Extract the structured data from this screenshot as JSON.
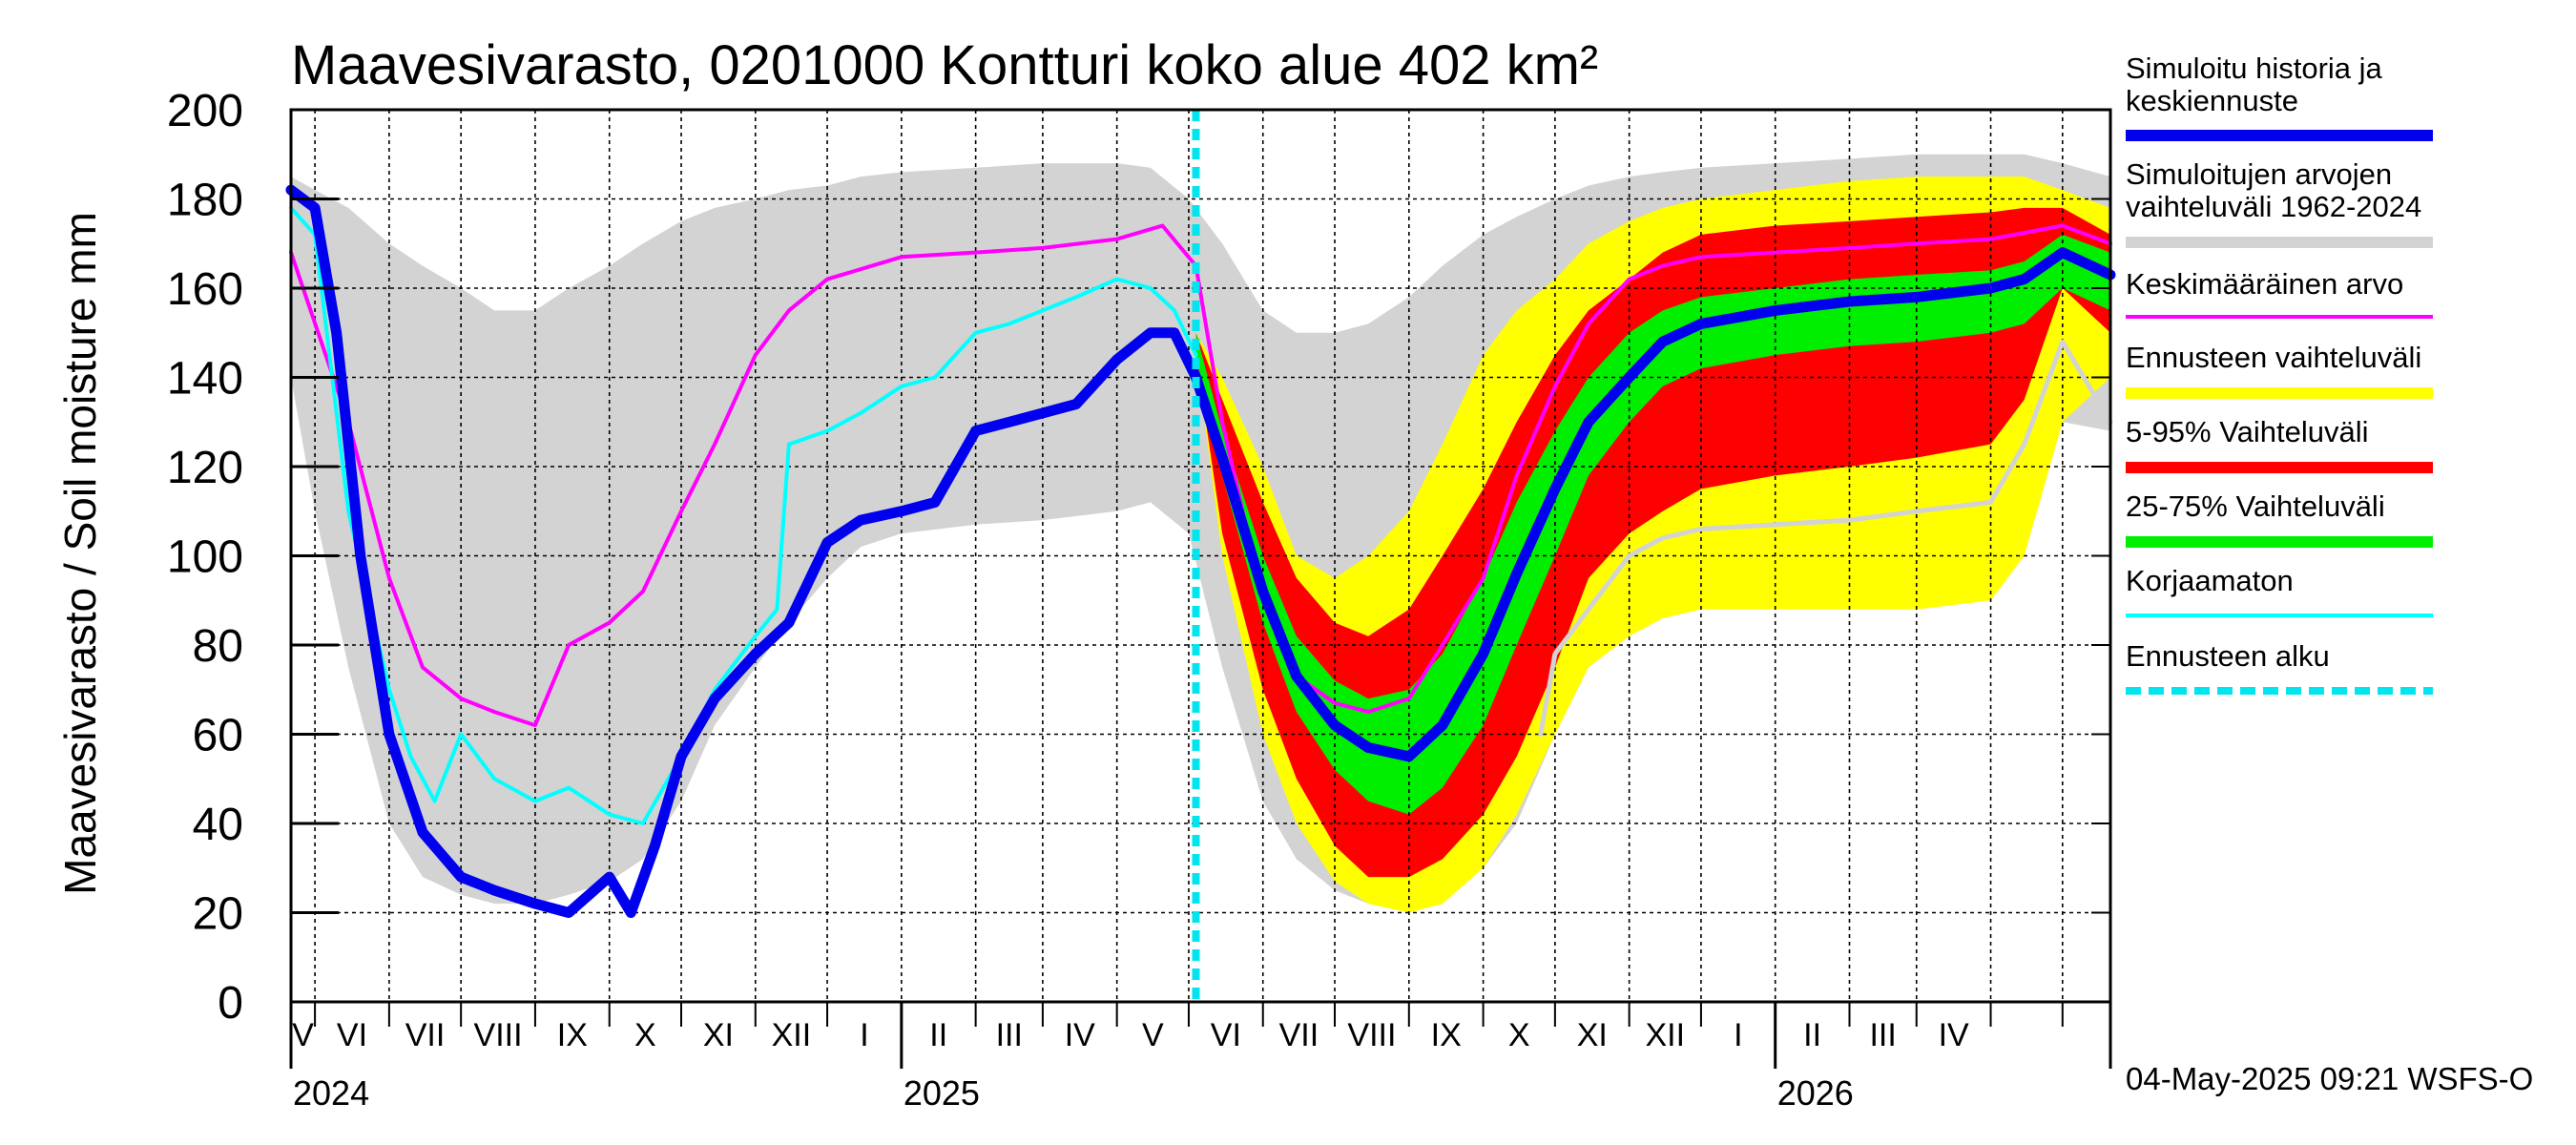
{
  "chart_data": {
    "type": "area",
    "title": "Maavesivarasto, 0201000 Kontturi koko alue 402 km²",
    "ylabel": "Maavesivarasto / Soil moisture   mm",
    "ylim": [
      0,
      200
    ],
    "yticks": [
      "0",
      "20",
      "40",
      "60",
      "80",
      "100",
      "120",
      "140",
      "160",
      "180",
      "200"
    ],
    "x_start": "2024-04-21",
    "x_end": "2026-05-21",
    "forecast_start": "2025-05-04",
    "grid": true,
    "legend_position": "right",
    "month_labels": [
      "V",
      "VI",
      "VII",
      "VIII",
      "IX",
      "X",
      "XI",
      "XII",
      "I",
      "II",
      "III",
      "IV",
      "V",
      "VI",
      "VII",
      "VIII",
      "IX",
      "X",
      "XI",
      "XII",
      "I",
      "II",
      "III",
      "IV"
    ],
    "year_labels": [
      "2024",
      "2025",
      "2026"
    ],
    "legend": [
      {
        "label": "Simuloitu historia ja keskiennuste",
        "color": "#0000ee"
      },
      {
        "label": "Simuloitujen arvojen vaihteluväli 1962-2024",
        "color": "#d3d3d3"
      },
      {
        "label": "Keskimääräinen arvo",
        "color": "#ff00ff"
      },
      {
        "label": "Ennusteen vaihteluväli",
        "color": "#ffff00"
      },
      {
        "label": "5-95% Vaihteluväli",
        "color": "#ff0000"
      },
      {
        "label": "25-75% Vaihteluväli",
        "color": "#00ee00"
      },
      {
        "label": "Korjaamaton",
        "color": "#00ffff"
      },
      {
        "label": "Ennusteen alku",
        "color": "#00e5ee"
      }
    ],
    "series": {
      "historical_range": {
        "x": [
          "2024-04-21",
          "2024-05-01",
          "2024-05-15",
          "2024-06-01",
          "2024-06-15",
          "2024-07-01",
          "2024-07-15",
          "2024-08-01",
          "2024-08-15",
          "2024-09-01",
          "2024-09-15",
          "2024-10-01",
          "2024-10-15",
          "2024-11-01",
          "2024-11-15",
          "2024-12-01",
          "2024-12-15",
          "2025-01-01",
          "2025-02-01",
          "2025-03-01",
          "2025-04-01",
          "2025-04-15",
          "2025-05-01",
          "2025-05-15",
          "2025-06-01",
          "2025-06-15",
          "2025-07-01",
          "2025-07-15",
          "2025-08-01",
          "2025-08-15",
          "2025-09-01",
          "2025-09-15",
          "2025-10-01",
          "2025-10-15",
          "2025-11-01",
          "2025-11-15",
          "2025-12-01",
          "2026-01-01",
          "2026-02-01",
          "2026-03-01",
          "2026-04-01",
          "2026-04-15",
          "2026-05-01",
          "2026-05-21"
        ],
        "low": [
          140,
          110,
          75,
          40,
          28,
          24,
          22,
          22,
          24,
          27,
          32,
          45,
          62,
          75,
          85,
          95,
          102,
          105,
          107,
          108,
          110,
          112,
          105,
          75,
          45,
          32,
          25,
          22,
          22,
          24,
          30,
          40,
          60,
          75,
          90,
          100,
          108,
          112,
          115,
          118,
          122,
          125,
          130,
          128
        ],
        "high": [
          185,
          182,
          178,
          170,
          165,
          160,
          155,
          155,
          160,
          165,
          170,
          175,
          178,
          180,
          182,
          183,
          185,
          186,
          187,
          188,
          188,
          187,
          180,
          170,
          155,
          150,
          150,
          152,
          158,
          165,
          172,
          176,
          180,
          183,
          185,
          186,
          187,
          188,
          189,
          190,
          190,
          190,
          188,
          185
        ]
      },
      "forecast_yellow": {
        "x": [
          "2025-05-04",
          "2025-05-15",
          "2025-06-01",
          "2025-06-15",
          "2025-07-01",
          "2025-07-15",
          "2025-08-01",
          "2025-08-15",
          "2025-09-01",
          "2025-09-15",
          "2025-10-01",
          "2025-10-15",
          "2025-11-01",
          "2025-11-15",
          "2025-12-01",
          "2026-01-01",
          "2026-02-01",
          "2026-03-01",
          "2026-04-01",
          "2026-04-15",
          "2026-05-01",
          "2026-05-21"
        ],
        "low": [
          145,
          100,
          60,
          40,
          27,
          22,
          20,
          22,
          30,
          42,
          60,
          75,
          82,
          86,
          88,
          88,
          88,
          88,
          90,
          100,
          130,
          140
        ],
        "high": [
          150,
          140,
          120,
          100,
          95,
          100,
          110,
          125,
          145,
          155,
          162,
          170,
          175,
          178,
          180,
          182,
          184,
          185,
          185,
          185,
          182,
          178
        ]
      },
      "forecast_5_95": {
        "x": [
          "2025-05-04",
          "2025-05-15",
          "2025-06-01",
          "2025-06-15",
          "2025-07-01",
          "2025-07-15",
          "2025-08-01",
          "2025-08-15",
          "2025-09-01",
          "2025-09-15",
          "2025-10-01",
          "2025-10-15",
          "2025-11-01",
          "2025-11-15",
          "2025-12-01",
          "2026-01-01",
          "2026-02-01",
          "2026-03-01",
          "2026-04-01",
          "2026-04-15",
          "2026-05-01",
          "2026-05-21"
        ],
        "low": [
          145,
          105,
          70,
          50,
          35,
          28,
          28,
          32,
          42,
          55,
          75,
          95,
          105,
          110,
          115,
          118,
          120,
          122,
          125,
          135,
          160,
          150
        ],
        "high": [
          150,
          135,
          112,
          95,
          85,
          82,
          88,
          100,
          115,
          130,
          145,
          155,
          162,
          168,
          172,
          174,
          175,
          176,
          177,
          178,
          178,
          172
        ]
      },
      "forecast_25_75": {
        "x": [
          "2025-05-04",
          "2025-05-15",
          "2025-06-01",
          "2025-06-15",
          "2025-07-01",
          "2025-07-15",
          "2025-08-01",
          "2025-08-15",
          "2025-09-01",
          "2025-09-15",
          "2025-10-01",
          "2025-10-15",
          "2025-11-01",
          "2025-11-15",
          "2025-12-01",
          "2026-01-01",
          "2026-02-01",
          "2026-03-01",
          "2026-04-01",
          "2026-04-15",
          "2026-05-01",
          "2026-05-21"
        ],
        "low": [
          145,
          118,
          85,
          65,
          52,
          45,
          42,
          48,
          62,
          80,
          100,
          118,
          130,
          138,
          142,
          145,
          147,
          148,
          150,
          152,
          160,
          155
        ],
        "high": [
          150,
          128,
          100,
          82,
          72,
          68,
          70,
          78,
          95,
          112,
          128,
          140,
          150,
          155,
          158,
          160,
          162,
          163,
          164,
          166,
          172,
          168
        ]
      },
      "simulated_history": {
        "x": [
          "2024-04-21",
          "2024-05-01",
          "2024-05-10",
          "2024-05-20",
          "2024-06-01",
          "2024-06-15",
          "2024-07-01",
          "2024-07-15",
          "2024-08-01",
          "2024-08-15",
          "2024-09-01",
          "2024-09-10",
          "2024-09-20",
          "2024-10-01",
          "2024-10-15",
          "2024-11-01",
          "2024-11-15",
          "2024-12-01",
          "2024-12-15",
          "2025-01-01",
          "2025-01-15",
          "2025-02-01",
          "2025-02-15",
          "2025-03-01",
          "2025-03-15",
          "2025-04-01",
          "2025-04-15",
          "2025-04-25",
          "2025-05-04"
        ],
        "y": [
          182,
          178,
          150,
          100,
          60,
          38,
          28,
          25,
          22,
          20,
          28,
          20,
          35,
          55,
          68,
          78,
          85,
          103,
          108,
          110,
          112,
          128,
          130,
          132,
          134,
          144,
          150,
          150,
          140
        ]
      },
      "mean_forecast": {
        "x": [
          "2025-05-04",
          "2025-05-15",
          "2025-06-01",
          "2025-06-15",
          "2025-07-01",
          "2025-07-15",
          "2025-08-01",
          "2025-08-15",
          "2025-09-01",
          "2025-09-15",
          "2025-10-01",
          "2025-10-15",
          "2025-11-01",
          "2025-11-15",
          "2025-12-01",
          "2026-01-01",
          "2026-02-01",
          "2026-03-01",
          "2026-04-01",
          "2026-04-15",
          "2026-05-01",
          "2026-05-21"
        ],
        "y": [
          140,
          122,
          92,
          73,
          62,
          57,
          55,
          62,
          78,
          96,
          115,
          130,
          140,
          148,
          152,
          155,
          157,
          158,
          160,
          162,
          168,
          163
        ]
      },
      "mean_value": {
        "x": [
          "2024-04-21",
          "2024-05-15",
          "2024-06-01",
          "2024-06-15",
          "2024-07-01",
          "2024-07-15",
          "2024-08-01",
          "2024-08-15",
          "2024-09-01",
          "2024-09-15",
          "2024-10-01",
          "2024-10-15",
          "2024-11-01",
          "2024-11-15",
          "2024-12-01",
          "2025-01-01",
          "2025-02-01",
          "2025-03-01",
          "2025-04-01",
          "2025-04-20",
          "2025-05-04",
          "2025-05-15",
          "2025-06-01",
          "2025-06-15",
          "2025-07-01",
          "2025-07-15",
          "2025-08-01",
          "2025-08-15",
          "2025-09-01",
          "2025-09-15",
          "2025-10-01",
          "2025-10-15",
          "2025-11-01",
          "2025-11-15",
          "2025-12-01",
          "2026-01-01",
          "2026-02-01",
          "2026-03-01",
          "2026-04-01",
          "2026-05-01",
          "2026-05-21"
        ],
        "y": [
          168,
          130,
          95,
          75,
          68,
          65,
          62,
          80,
          85,
          92,
          110,
          125,
          145,
          155,
          162,
          167,
          168,
          169,
          171,
          174,
          165,
          130,
          90,
          73,
          67,
          65,
          68,
          80,
          95,
          118,
          138,
          152,
          162,
          165,
          167,
          168,
          169,
          170,
          171,
          174,
          170
        ]
      },
      "uncorrected": {
        "x": [
          "2024-04-21",
          "2024-05-01",
          "2024-05-15",
          "2024-06-01",
          "2024-06-10",
          "2024-06-20",
          "2024-07-01",
          "2024-07-15",
          "2024-08-01",
          "2024-08-15",
          "2024-09-01",
          "2024-09-15",
          "2024-10-01",
          "2024-10-15",
          "2024-11-01",
          "2024-11-10",
          "2024-11-15",
          "2024-12-01",
          "2024-12-15",
          "2025-01-01",
          "2025-01-15",
          "2025-02-01",
          "2025-02-15",
          "2025-03-01",
          "2025-03-15",
          "2025-04-01",
          "2025-04-15",
          "2025-04-25",
          "2025-05-04"
        ],
        "y": [
          178,
          172,
          110,
          70,
          55,
          45,
          60,
          50,
          45,
          48,
          42,
          40,
          55,
          70,
          82,
          88,
          125,
          128,
          132,
          138,
          140,
          150,
          152,
          155,
          158,
          162,
          160,
          155,
          145
        ]
      },
      "uncorrected_forecast": {
        "x": [
          "2025-09-25",
          "2025-10-01",
          "2025-10-15",
          "2025-11-01",
          "2025-11-15",
          "2025-12-01",
          "2026-01-01",
          "2026-02-01",
          "2026-03-01",
          "2026-04-01",
          "2026-04-15",
          "2026-05-01",
          "2026-05-21"
        ],
        "y": [
          60,
          78,
          88,
          100,
          104,
          106,
          107,
          108,
          110,
          112,
          125,
          148,
          130
        ]
      }
    }
  },
  "timestamp": "04-May-2025 09:21 WSFS-O"
}
